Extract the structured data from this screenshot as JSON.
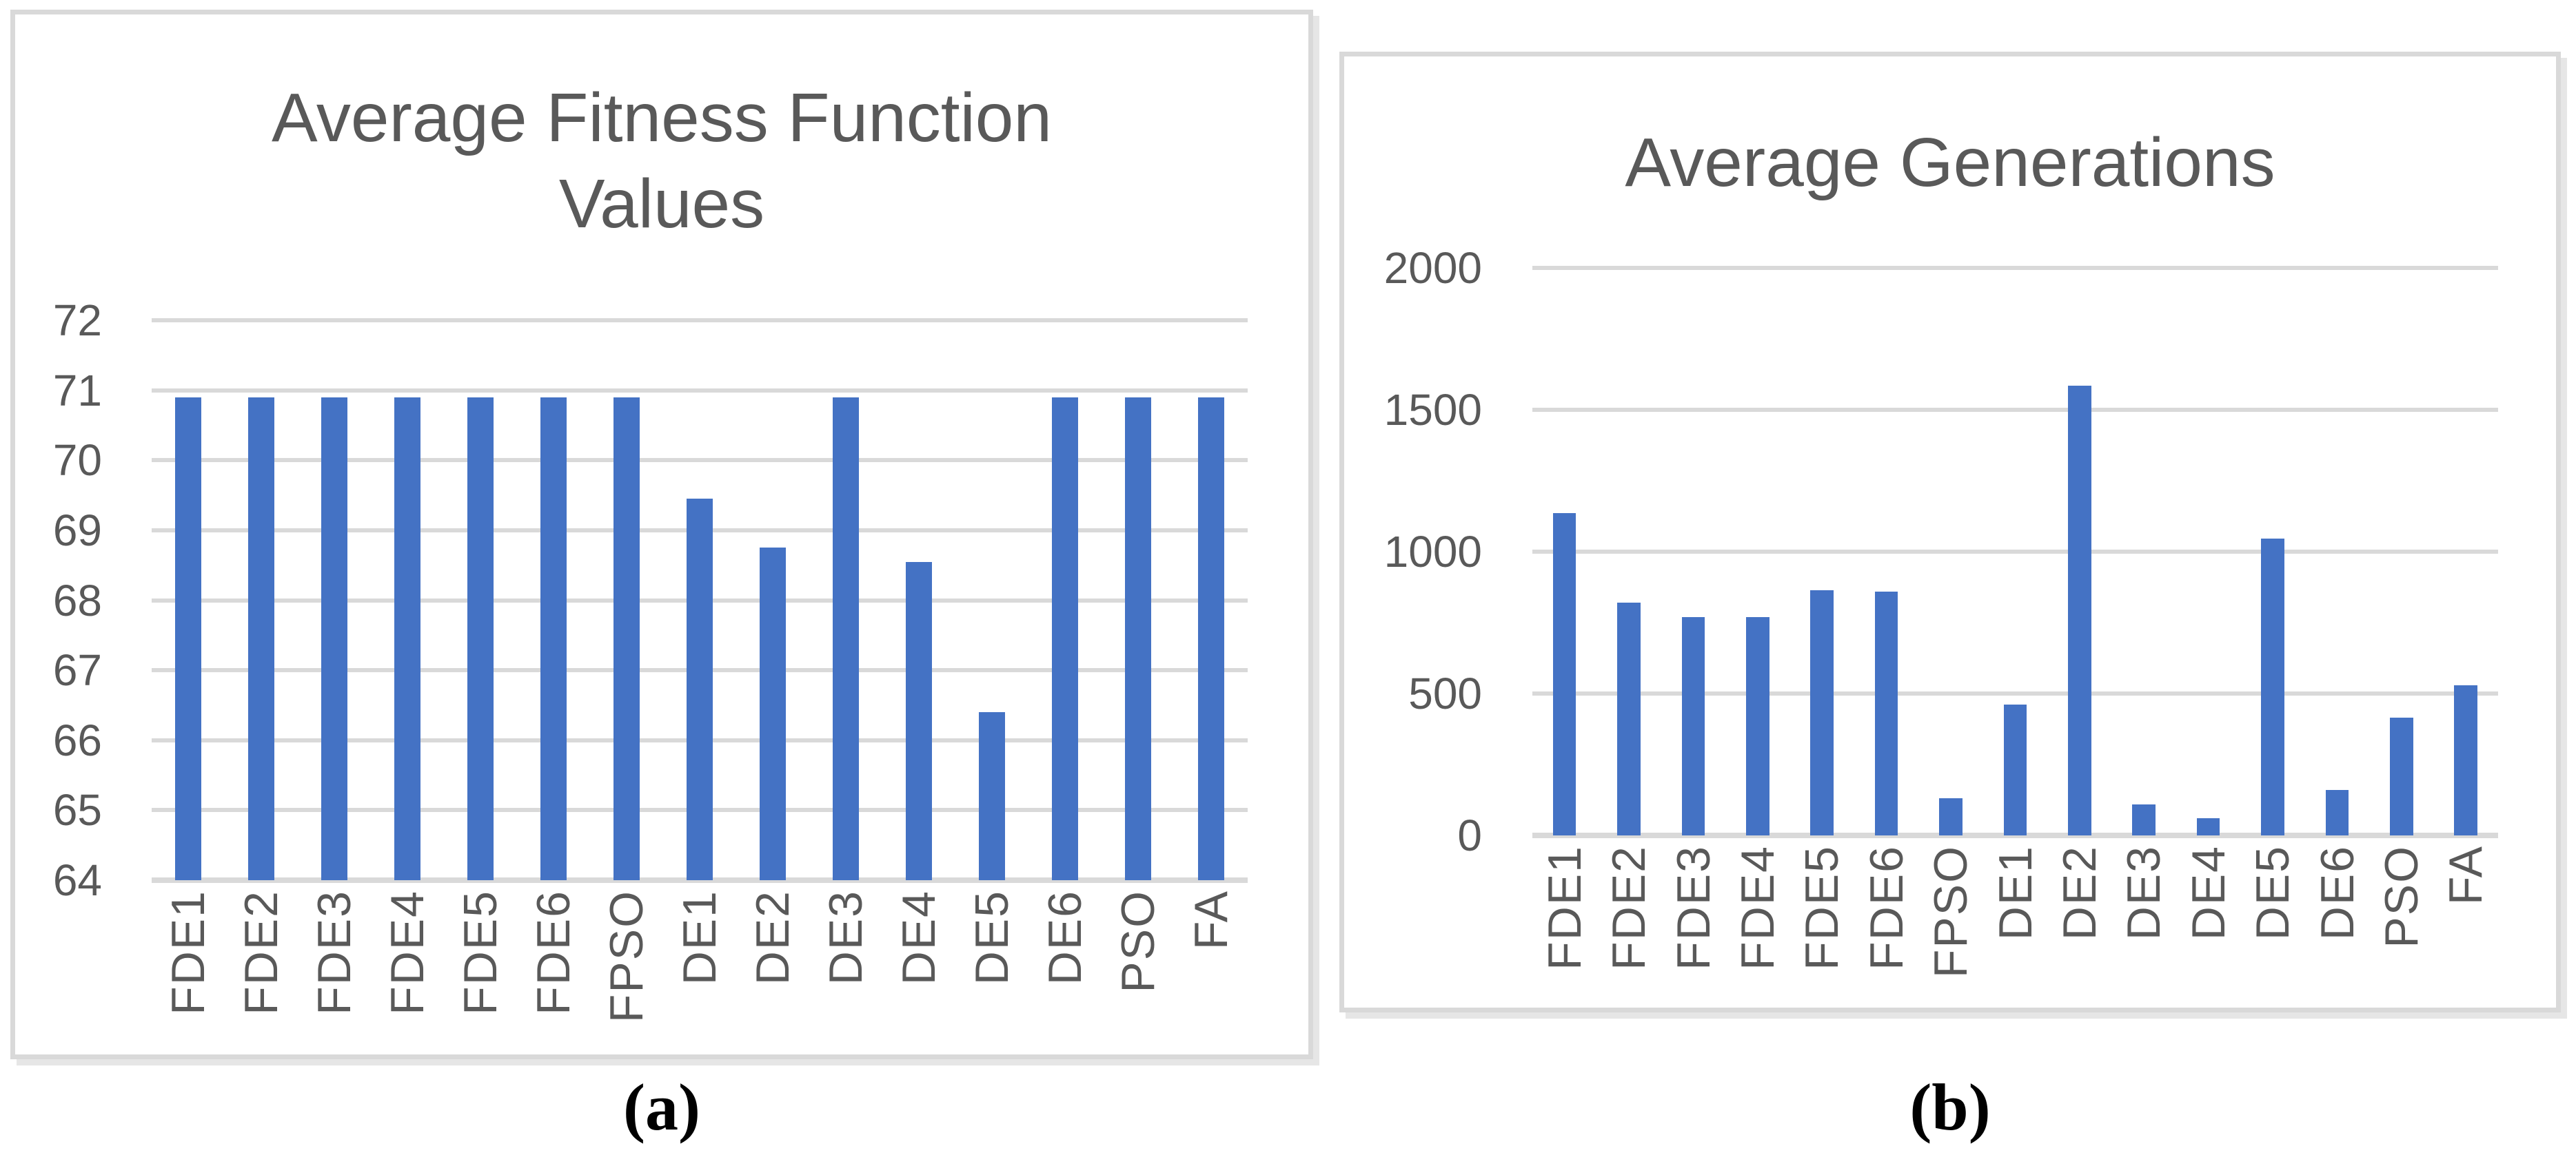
{
  "page": {
    "background_color": "#FFFFFF"
  },
  "captions": {
    "a": "(a)",
    "b": "(b)"
  },
  "colors": {
    "bar": "#4472C4",
    "gridline": "#D9D9D9",
    "axis_text": "#595959",
    "title_text": "#595959",
    "panel_border": "#D9D9D9",
    "caption_text": "#000000"
  },
  "chart_data": [
    {
      "type": "bar",
      "title": "Average Fitness Function Values",
      "title_lines": [
        "Average Fitness Function",
        "Values"
      ],
      "categories": [
        "FDE1",
        "FDE2",
        "FDE3",
        "FDE4",
        "FDE5",
        "FDE6",
        "FPSO",
        "DE1",
        "DE2",
        "DE3",
        "DE4",
        "DE5",
        "DE6",
        "PSO",
        "FA"
      ],
      "values": [
        70.9,
        70.9,
        70.9,
        70.9,
        70.9,
        70.9,
        70.9,
        69.45,
        68.75,
        70.9,
        68.55,
        66.4,
        70.9,
        70.9,
        70.9
      ],
      "xlabel": "",
      "ylabel": "",
      "ylim": [
        64,
        72
      ],
      "ytick_step": 1,
      "ytick_labels": [
        "72",
        "71",
        "70",
        "69",
        "68",
        "67",
        "66",
        "65",
        "64"
      ],
      "grid": true,
      "legend": false,
      "bar_color": "#4472C4",
      "gridline_color": "#D9D9D9"
    },
    {
      "type": "bar",
      "title": "Average Generations",
      "title_lines": [
        "Average Generations"
      ],
      "categories": [
        "FDE1",
        "FDE2",
        "FDE3",
        "FDE4",
        "FDE5",
        "FDE6",
        "FPSO",
        "DE1",
        "DE2",
        "DE3",
        "DE4",
        "DE5",
        "DE6",
        "PSO",
        "FA"
      ],
      "values": [
        1135,
        820,
        770,
        770,
        865,
        860,
        130,
        460,
        1585,
        110,
        60,
        1045,
        160,
        415,
        530
      ],
      "xlabel": "",
      "ylabel": "",
      "ylim": [
        0,
        2000
      ],
      "ytick_step": 500,
      "ytick_labels": [
        "2000",
        "1500",
        "1000",
        "500",
        "0"
      ],
      "grid": true,
      "legend": false,
      "bar_color": "#4472C4",
      "gridline_color": "#D9D9D9"
    }
  ]
}
